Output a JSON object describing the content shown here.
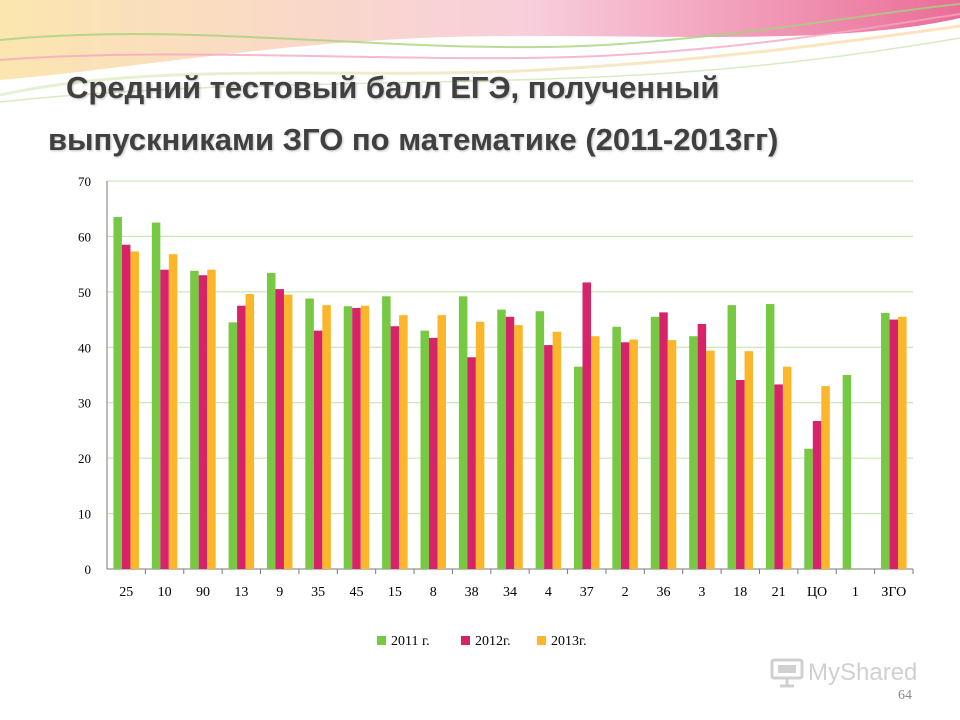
{
  "slide": {
    "title_line1": "Средний тестовый балл ЕГЭ, полученный",
    "title_line2": "выпускниками ЗГО по математике (2011-2013гг)",
    "page_number": "64"
  },
  "watermark": {
    "text": "MyShared",
    "icon": "presentation-icon"
  },
  "colors": {
    "2011": "#77c843",
    "2012": "#d7236a",
    "2013": "#fbb62a",
    "grid": "#bfe0a8"
  },
  "chart_data": {
    "type": "bar",
    "categories": [
      "25",
      "10",
      "90",
      "13",
      "9",
      "35",
      "45",
      "15",
      "8",
      "38",
      "34",
      "4",
      "37",
      "2",
      "36",
      "3",
      "18",
      "21",
      "ЦО",
      "1",
      "ЗГО"
    ],
    "series": [
      {
        "name": "2011 г.",
        "values": [
          63.5,
          62.5,
          53.8,
          44.5,
          53.4,
          48.8,
          47.4,
          49.2,
          43,
          49.2,
          46.8,
          46.5,
          36.5,
          43.7,
          45.5,
          42,
          47.6,
          47.8,
          21.7,
          35,
          46.2
        ]
      },
      {
        "name": "2012г.",
        "values": [
          58.5,
          54,
          53,
          47.5,
          50.5,
          43,
          47.1,
          43.8,
          41.7,
          38.2,
          45.5,
          40.4,
          51.7,
          40.9,
          46.3,
          44.2,
          34.1,
          33.3,
          26.7,
          null,
          45
        ]
      },
      {
        "name": "2013г.",
        "values": [
          57.3,
          56.8,
          54,
          49.6,
          49.5,
          47.6,
          47.5,
          45.8,
          45.8,
          44.6,
          44,
          42.8,
          42,
          41.4,
          41.3,
          39.4,
          39.3,
          36.5,
          33,
          null,
          45.5
        ]
      }
    ],
    "ylim": [
      0,
      70
    ],
    "yticks": [
      0,
      10,
      20,
      30,
      40,
      50,
      60,
      70
    ],
    "grid": true,
    "legend_position": "bottom"
  }
}
